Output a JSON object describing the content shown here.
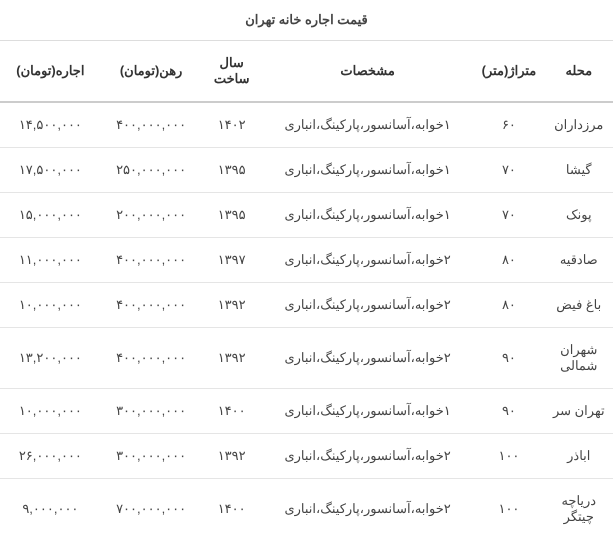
{
  "title": "قیمت اجاره خانه تهران",
  "columns": {
    "neighborhood": "محله",
    "area": "متراژ(متر)",
    "features": "مشخصات",
    "year": "سال ساخت",
    "deposit": "رهن(تومان)",
    "rent": "اجاره(تومان)"
  },
  "rows": [
    {
      "neighborhood": "مرزداران",
      "area": "۶۰",
      "features": "۱خوابه،آسانسور،پارکینگ،انباری",
      "year": "۱۴۰۲",
      "deposit": "۴۰۰,۰۰۰,۰۰۰",
      "rent": "۱۴,۵۰۰,۰۰۰"
    },
    {
      "neighborhood": "گیشا",
      "area": "۷۰",
      "features": "۱خوابه،آسانسور،پارکینگ،انباری",
      "year": "۱۳۹۵",
      "deposit": "۲۵۰,۰۰۰,۰۰۰",
      "rent": "۱۷,۵۰۰,۰۰۰"
    },
    {
      "neighborhood": "پونک",
      "area": "۷۰",
      "features": "۱خوابه،آسانسور،پارکینگ،انباری",
      "year": "۱۳۹۵",
      "deposit": "۲۰۰,۰۰۰,۰۰۰",
      "rent": "۱۵,۰۰۰,۰۰۰"
    },
    {
      "neighborhood": "صادقیه",
      "area": "۸۰",
      "features": "۲خوابه،آسانسور،پارکینگ،انباری",
      "year": "۱۳۹۷",
      "deposit": "۴۰۰,۰۰۰,۰۰۰",
      "rent": "۱۱,۰۰۰,۰۰۰"
    },
    {
      "neighborhood": "باغ فیض",
      "area": "۸۰",
      "features": "۲خوابه،آسانسور،پارکینگ،انباری",
      "year": "۱۳۹۲",
      "deposit": "۴۰۰,۰۰۰,۰۰۰",
      "rent": "۱۰,۰۰۰,۰۰۰"
    },
    {
      "neighborhood": "شهران شمالی",
      "area": "۹۰",
      "features": "۲خوابه،آسانسور،پارکینگ،انباری",
      "year": "۱۳۹۲",
      "deposit": "۴۰۰,۰۰۰,۰۰۰",
      "rent": "۱۳,۲۰۰,۰۰۰"
    },
    {
      "neighborhood": "تهران سر",
      "area": "۹۰",
      "features": "۱خوابه،آسانسور،پارکینگ،انباری",
      "year": "۱۴۰۰",
      "deposit": "۳۰۰,۰۰۰,۰۰۰",
      "rent": "۱۰,۰۰۰,۰۰۰"
    },
    {
      "neighborhood": "اباذر",
      "area": "۱۰۰",
      "features": "۲خوابه،آسانسور،پارکینگ،انباری",
      "year": "۱۳۹۲",
      "deposit": "۳۰۰,۰۰۰,۰۰۰",
      "rent": "۲۶,۰۰۰,۰۰۰"
    },
    {
      "neighborhood": "دریاچه چیتگر",
      "area": "۱۰۰",
      "features": "۲خوابه،آسانسور،پارکینگ،انباری",
      "year": "۱۴۰۰",
      "deposit": "۷۰۰,۰۰۰,۰۰۰",
      "rent": "۹,۰۰۰,۰۰۰"
    }
  ],
  "styling": {
    "border_color": "#e5e5e5",
    "header_border_color": "#ccc",
    "text_color": "#444",
    "background_color": "#ffffff",
    "font_size": 13
  }
}
